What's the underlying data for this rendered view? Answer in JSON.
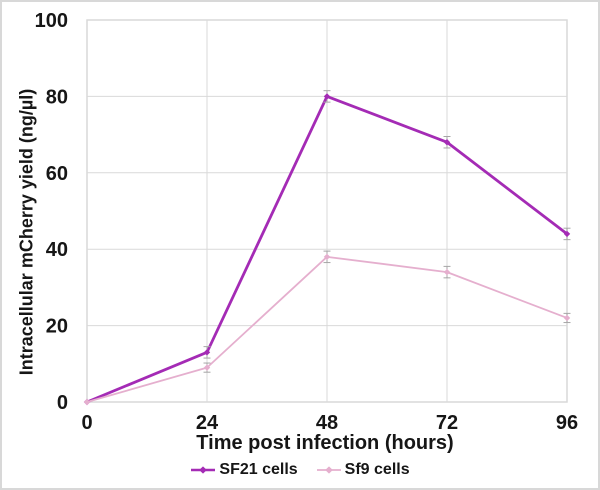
{
  "figure": {
    "background": "#ffffff",
    "border_color": "#d8d8d8"
  },
  "chart_data": {
    "type": "line",
    "title": "",
    "xlabel": "Time post infection (hours)",
    "ylabel": "Intracellular mCherry yield (ng/µl)",
    "x": [
      0,
      24,
      48,
      72,
      96
    ],
    "x_ticks": [
      0,
      24,
      48,
      72,
      96
    ],
    "y_ticks": [
      0,
      20,
      40,
      60,
      80,
      100
    ],
    "xlim": [
      0,
      96
    ],
    "ylim": [
      0,
      100
    ],
    "grid": true,
    "gridline_color": "#d9d9d9",
    "error_bar_color": "#a6a6a6",
    "legend_position": "bottom",
    "series": [
      {
        "name": "SF21 cells",
        "color": "#a42bb5",
        "values": [
          0,
          13,
          80,
          68,
          44
        ],
        "errors": [
          0,
          1.5,
          1.5,
          1.5,
          1.5
        ]
      },
      {
        "name": "Sf9 cells",
        "color": "#e5afce",
        "values": [
          0,
          9,
          38,
          34,
          22
        ],
        "errors": [
          0,
          1.2,
          1.5,
          1.5,
          1.2
        ]
      }
    ]
  }
}
